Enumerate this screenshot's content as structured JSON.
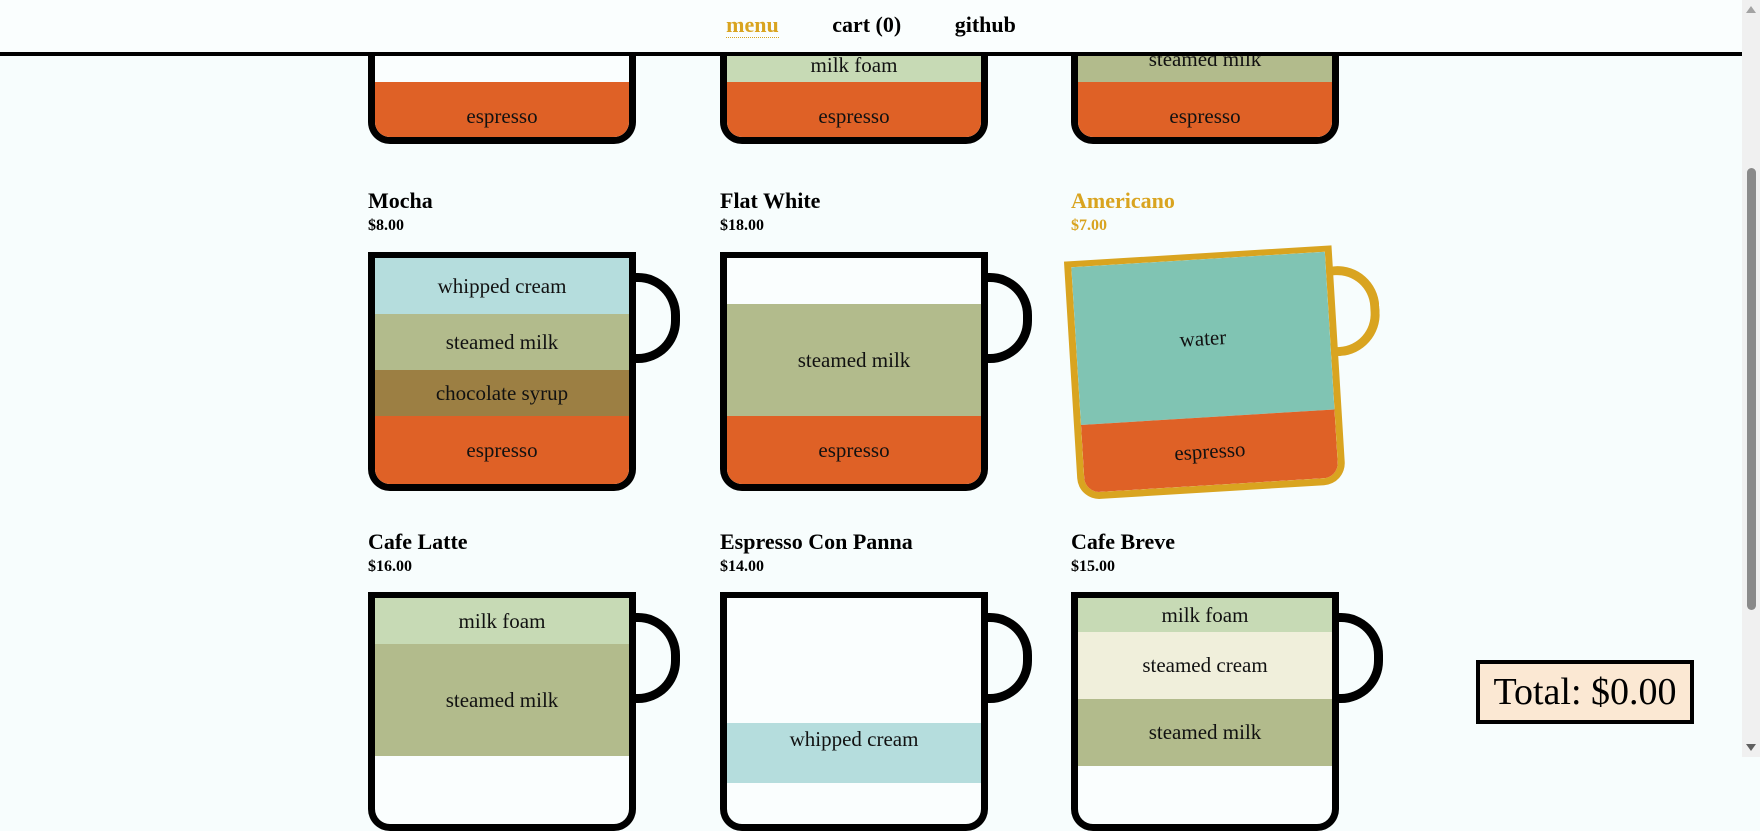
{
  "nav": {
    "menu": "menu",
    "cart": "cart (0)",
    "github": "github"
  },
  "top_row": [
    {
      "layers": [
        "",
        "espresso"
      ]
    },
    {
      "layers": [
        "milk foam",
        "espresso"
      ]
    },
    {
      "layers": [
        "steamed milk",
        "espresso"
      ]
    }
  ],
  "menu_items": [
    {
      "name": "Mocha",
      "price": "$8.00",
      "layers": [
        "whipped cream",
        "steamed milk",
        "chocolate syrup",
        "espresso"
      ]
    },
    {
      "name": "Flat White",
      "price": "$18.00",
      "layers": [
        "steamed milk",
        "espresso"
      ]
    },
    {
      "name": "Americano",
      "price": "$7.00",
      "layers": [
        "water",
        "espresso"
      ]
    },
    {
      "name": "Cafe Latte",
      "price": "$16.00",
      "layers": [
        "milk foam",
        "steamed milk"
      ]
    },
    {
      "name": "Espresso Con Panna",
      "price": "$14.00",
      "layers": [
        "whipped cream"
      ]
    },
    {
      "name": "Cafe Breve",
      "price": "$15.00",
      "layers": [
        "milk foam",
        "steamed cream",
        "steamed milk"
      ]
    }
  ],
  "total": "Total: $0.00",
  "colors": {
    "accent": "#d9a420",
    "espresso": "#df6126",
    "steamed_milk": "#b2bb8c",
    "milk_foam": "#c7dab5",
    "whipped_cream": "#b5dddd",
    "chocolate_syrup": "#9c7f43",
    "water": "#80c4b3",
    "steamed_cream": "#f0efdb"
  }
}
